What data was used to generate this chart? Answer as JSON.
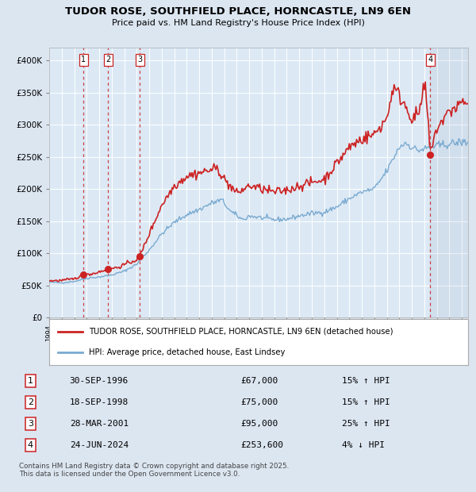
{
  "title": "TUDOR ROSE, SOUTHFIELD PLACE, HORNCASTLE, LN9 6EN",
  "subtitle": "Price paid vs. HM Land Registry's House Price Index (HPI)",
  "legend_line1": "TUDOR ROSE, SOUTHFIELD PLACE, HORNCASTLE, LN9 6EN (detached house)",
  "legend_line2": "HPI: Average price, detached house, East Lindsey",
  "footer": "Contains HM Land Registry data © Crown copyright and database right 2025.\nThis data is licensed under the Open Government Licence v3.0.",
  "sales": [
    {
      "num": 1,
      "date": "30-SEP-1996",
      "price": 67000,
      "x": 1996.75,
      "pct": "15%",
      "dir": "↑"
    },
    {
      "num": 2,
      "date": "18-SEP-1998",
      "price": 75000,
      "x": 1998.71,
      "pct": "15%",
      "dir": "↑"
    },
    {
      "num": 3,
      "date": "28-MAR-2001",
      "price": 95000,
      "x": 2001.24,
      "pct": "25%",
      "dir": "↑"
    },
    {
      "num": 4,
      "date": "24-JUN-2024",
      "price": 253600,
      "x": 2024.48,
      "pct": "4%",
      "dir": "↓"
    }
  ],
  "hpi_color": "#7aaad0",
  "price_color": "#cc2222",
  "vline_color": "#cc2222",
  "bg_color": "#dce6f1",
  "plot_bg": "#dce9f5",
  "grid_color": "#ffffff",
  "ylim": [
    0,
    420000
  ],
  "xlim_start": 1994.0,
  "xlim_end": 2027.5,
  "yticks": [
    0,
    50000,
    100000,
    150000,
    200000,
    250000,
    300000,
    350000,
    400000
  ],
  "ytick_labels": [
    "£0",
    "£50K",
    "£100K",
    "£150K",
    "£200K",
    "£250K",
    "£300K",
    "£350K",
    "£400K"
  ],
  "hpi_anchors": {
    "1994.0": 55000,
    "1995.0": 54000,
    "1996.0": 56000,
    "1997.0": 61000,
    "1998.0": 63000,
    "1999.0": 66000,
    "2000.0": 72000,
    "2001.0": 83000,
    "2002.0": 105000,
    "2003.0": 130000,
    "2004.0": 148000,
    "2005.0": 160000,
    "2006.0": 168000,
    "2007.0": 178000,
    "2007.8": 183000,
    "2008.5": 165000,
    "2009.5": 152000,
    "2010.0": 158000,
    "2011.0": 155000,
    "2012.0": 152000,
    "2013.0": 153000,
    "2014.0": 158000,
    "2015.0": 162000,
    "2016.0": 164000,
    "2017.0": 172000,
    "2018.0": 185000,
    "2019.0": 195000,
    "2020.0": 200000,
    "2021.0": 228000,
    "2022.0": 265000,
    "2022.5": 272000,
    "2023.0": 265000,
    "2023.5": 260000,
    "2024.0": 262000,
    "2024.5": 265000,
    "2025.0": 267000,
    "2026.0": 270000,
    "2027.0": 273000
  },
  "prop_anchors": {
    "1994.0": 57000,
    "1995.0": 57500,
    "1996.0": 60000,
    "1996.75": 67000,
    "1997.5": 68000,
    "1998.0": 71000,
    "1998.71": 75000,
    "1999.5": 78000,
    "2000.0": 82000,
    "2001.0": 90000,
    "2001.24": 95000,
    "2002.0": 130000,
    "2003.0": 175000,
    "2004.0": 205000,
    "2005.0": 220000,
    "2006.0": 225000,
    "2007.0": 230000,
    "2007.5": 232000,
    "2008.0": 215000,
    "2009.0": 193000,
    "2010.0": 205000,
    "2011.0": 200000,
    "2012.0": 195000,
    "2013.0": 198000,
    "2014.0": 205000,
    "2015.0": 210000,
    "2016.0": 215000,
    "2017.0": 240000,
    "2018.0": 265000,
    "2019.0": 278000,
    "2020.0": 285000,
    "2021.0": 310000,
    "2021.5": 358000,
    "2022.0": 345000,
    "2022.5": 330000,
    "2023.0": 310000,
    "2023.5": 315000,
    "2024.0": 355000,
    "2024.1": 360000,
    "2024.48": 253600,
    "2025.0": 295000,
    "2026.0": 320000,
    "2027.0": 335000
  }
}
